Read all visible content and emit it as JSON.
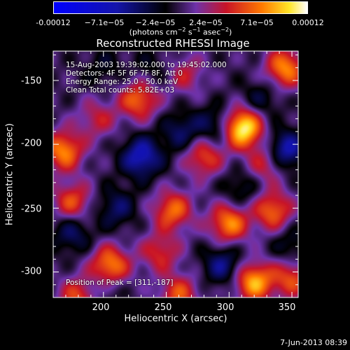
{
  "colorbar": {
    "tick_labels": [
      "-0.00012",
      "−7.1e−05",
      "−2.4e−05",
      "2.4e−05",
      "7.1e−05",
      "0.00012"
    ],
    "tick_values": [
      -0.00012,
      -7.1e-05,
      -2.4e-05,
      2.4e-05,
      7.1e-05,
      0.00012
    ],
    "range": [
      -0.00012,
      0.00012
    ],
    "unit": {
      "a": "(photons cm",
      "a_sup": "−2",
      "b": " s",
      "b_sup": "−1",
      "c": " asec",
      "c_sup": "−2",
      "d": ")"
    }
  },
  "info": {
    "line1": "15-Aug-2003 19:39:02.000 to 19:45:02.000",
    "line2": "Detectors: 4F 5F 6F 7F 8F, Att 0",
    "line3": "Energy Range: 25.0 - 50.0 keV",
    "line4": "Clean     Total counts: 5.82E+03"
  },
  "peak_text": "Position of Peak = [311,-187]",
  "footer_date": "7-Jun-2013 08:39",
  "chart_data": {
    "type": "heatmap",
    "title": "Reconstructed RHESSI Image",
    "xlabel": "Heliocentric X (arcsec)",
    "ylabel": "Heliocentric Y (arcsec)",
    "xlim": [
      160,
      355
    ],
    "ylim": [
      -320,
      -127
    ],
    "x_ticks": [
      200,
      250,
      300,
      350
    ],
    "y_ticks": [
      -150,
      -200,
      -250,
      -300
    ],
    "value_range": [
      -0.00012,
      0.00012
    ],
    "peak": [
      311,
      -187
    ],
    "peak_value": 0.00012,
    "sources": [
      {
        "x": 311,
        "y": -187,
        "value": 0.00012
      },
      {
        "x": 345,
        "y": -140,
        "value": 8e-05
      },
      {
        "x": 168,
        "y": -205,
        "value": 8e-05
      },
      {
        "x": 228,
        "y": -165,
        "value": 7e-05
      },
      {
        "x": 280,
        "y": -210,
        "value": 6e-05
      },
      {
        "x": 300,
        "y": -262,
        "value": 8e-05
      },
      {
        "x": 255,
        "y": -252,
        "value": 7e-05
      },
      {
        "x": 205,
        "y": -295,
        "value": 8e-05
      },
      {
        "x": 335,
        "y": -252,
        "value": 7e-05
      },
      {
        "x": 175,
        "y": -245,
        "value": 6e-05
      },
      {
        "x": 320,
        "y": -308,
        "value": 9e-05
      },
      {
        "x": 260,
        "y": -318,
        "value": 6e-05
      },
      {
        "x": 350,
        "y": -305,
        "value": 6e-05
      },
      {
        "x": 180,
        "y": -320,
        "value": 6e-05
      },
      {
        "x": 245,
        "y": -285,
        "value": 5e-05
      },
      {
        "x": 195,
        "y": -180,
        "value": 4e-05
      },
      {
        "x": 265,
        "y": -145,
        "value": 4e-05
      },
      {
        "x": 330,
        "y": -215,
        "value": 5e-05
      },
      {
        "x": 230,
        "y": -210,
        "value": -7e-05
      },
      {
        "x": 262,
        "y": -190,
        "value": -4e-05
      },
      {
        "x": 290,
        "y": -185,
        "value": -4e-05
      },
      {
        "x": 345,
        "y": -205,
        "value": -7e-05
      },
      {
        "x": 210,
        "y": -250,
        "value": -4e-05
      },
      {
        "x": 295,
        "y": -295,
        "value": -5e-05
      },
      {
        "x": 175,
        "y": -270,
        "value": -4e-05
      },
      {
        "x": 325,
        "y": -165,
        "value": -3e-05
      },
      {
        "x": 240,
        "y": -140,
        "value": -2e-05
      },
      {
        "x": 200,
        "y": -140,
        "value": -2e-05
      },
      {
        "x": 310,
        "y": -235,
        "value": -3e-05
      },
      {
        "x": 200,
        "y": -315,
        "value": -2e-05
      },
      {
        "x": 350,
        "y": -280,
        "value": -3e-05
      }
    ]
  }
}
